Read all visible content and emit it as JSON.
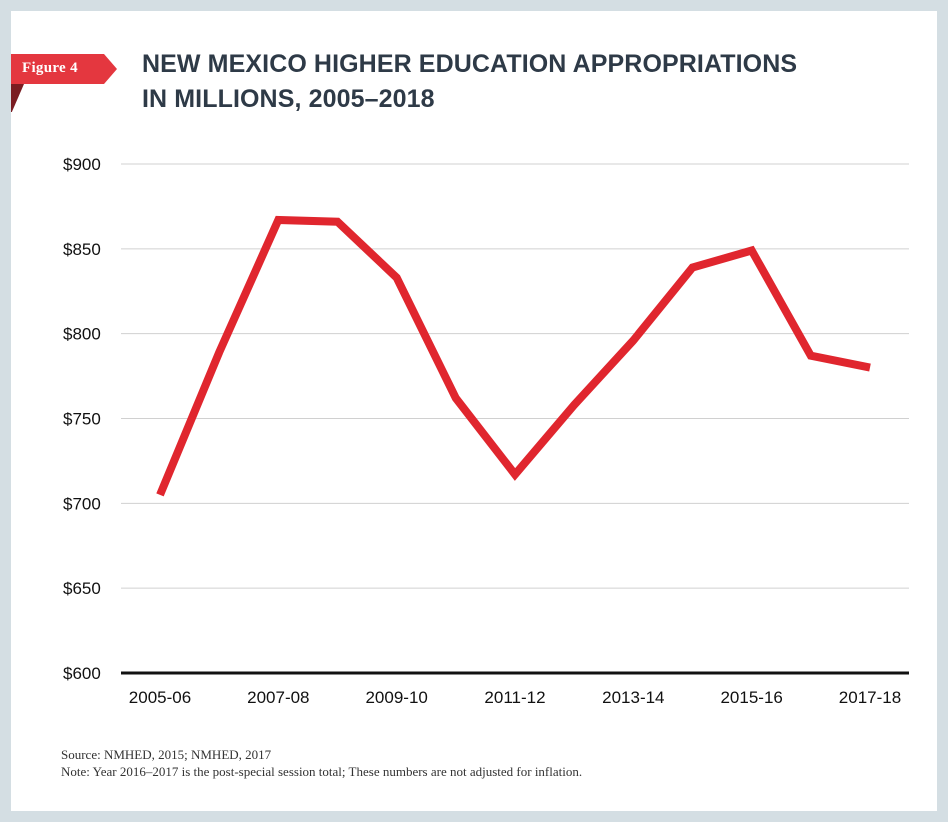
{
  "figure_tag": "Figure 4",
  "title_lines": [
    "NEW MEXICO HIGHER EDUCATION APPROPRIATIONS",
    "IN MILLIONS, 2005–2018"
  ],
  "source": "Source: NMHED, 2015; NMHED, 2017",
  "note": "Note: Year 2016–2017 is the post-special session total; These numbers are not adjusted for inflation.",
  "colors": {
    "accent": "#e4373f",
    "line": "#e0262e",
    "title": "#2e3a47",
    "frame": "#d4dee3",
    "grid": "#d0d0d0"
  },
  "chart_data": {
    "type": "line",
    "x": [
      "2005-06",
      "2006-07",
      "2007-08",
      "2008-09",
      "2009-10",
      "2010-11",
      "2011-12",
      "2012-13",
      "2013-14",
      "2014-15",
      "2015-16",
      "2016-17",
      "2017-18"
    ],
    "x_tick_labels": [
      "2005-06",
      "2007-08",
      "2009-10",
      "2011-12",
      "2013-14",
      "2015-16",
      "2017-18"
    ],
    "values": [
      705,
      789,
      867,
      866,
      833,
      762,
      717,
      758,
      796,
      839,
      849,
      787,
      780
    ],
    "ylim": [
      600,
      900
    ],
    "y_ticks": [
      600,
      650,
      700,
      750,
      800,
      850,
      900
    ],
    "y_tick_labels": [
      "$600",
      "$650",
      "$700",
      "$750",
      "$800",
      "$850",
      "$900"
    ],
    "grid": true,
    "xlabel": "",
    "ylabel": ""
  }
}
